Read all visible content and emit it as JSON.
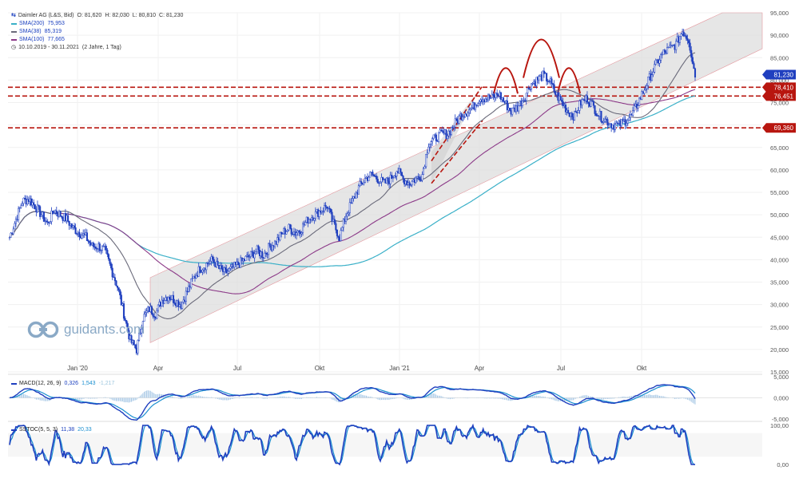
{
  "legend": {
    "title": "Daimler AG (L&S, Bid)",
    "ohlc": [
      {
        "label": "O:",
        "value": "81,620"
      },
      {
        "label": "H:",
        "value": "82,030"
      },
      {
        "label": "L:",
        "value": "80,810"
      },
      {
        "label": "C:",
        "value": "81,230"
      }
    ],
    "sma": [
      {
        "label": "SMA(200)",
        "value": "75,953",
        "color": "#3ab0c8"
      },
      {
        "label": "SMA(38)",
        "value": "85,319",
        "color": "#6a6a7a"
      },
      {
        "label": "SMA(100)",
        "value": "77,665",
        "color": "#8c3a88"
      }
    ],
    "period": "10.10.2019 - 30.11.2021",
    "period_note": "(2 Jahre, 1 Tag)"
  },
  "watermark": "guidants.com",
  "colors": {
    "candle": "#1f3fbf",
    "resistance": "#b8160f",
    "channel_fill": "#dedede",
    "price_tag": "#1f3fbf"
  },
  "chart_data": [
    {
      "type": "candlestick",
      "title": "Daimler AG (L&S, Bid)",
      "x_ticks": [
        "Jan '20",
        "Apr",
        "Jul",
        "Okt",
        "Jan '21",
        "Apr",
        "Jul",
        "Okt"
      ],
      "y_ticks": [
        "95,000",
        "90,000",
        "85,000",
        "80,000",
        "75,000",
        "70,000",
        "65,000",
        "60,000",
        "55,000",
        "50,000",
        "45,000",
        "40,000",
        "35,000",
        "30,000",
        "25,000",
        "20,000",
        "15,000"
      ],
      "ylim": [
        15,
        95
      ],
      "last_price": "81,230",
      "levels": [
        {
          "label": "78,410",
          "value": 78.41
        },
        {
          "label": "76,451",
          "value": 76.451
        },
        {
          "label": "69,360",
          "value": 69.36
        }
      ],
      "close_approx": [
        [
          0,
          45
        ],
        [
          5,
          49
        ],
        [
          10,
          53
        ],
        [
          15,
          53.5
        ],
        [
          20,
          52
        ],
        [
          25,
          50
        ],
        [
          30,
          48
        ],
        [
          35,
          51
        ],
        [
          40,
          50
        ],
        [
          45,
          49
        ],
        [
          50,
          47
        ],
        [
          55,
          46
        ],
        [
          60,
          45
        ],
        [
          65,
          43
        ],
        [
          70,
          43
        ],
        [
          75,
          42
        ],
        [
          80,
          38
        ],
        [
          85,
          34
        ],
        [
          90,
          28
        ],
        [
          95,
          22
        ],
        [
          100,
          20
        ],
        [
          105,
          27
        ],
        [
          110,
          29
        ],
        [
          115,
          28
        ],
        [
          120,
          31
        ],
        [
          125,
          32
        ],
        [
          130,
          31
        ],
        [
          135,
          30
        ],
        [
          140,
          33
        ],
        [
          145,
          36
        ],
        [
          150,
          38
        ],
        [
          155,
          39
        ],
        [
          160,
          40
        ],
        [
          165,
          38
        ],
        [
          170,
          37
        ],
        [
          175,
          38
        ],
        [
          180,
          39
        ],
        [
          185,
          40
        ],
        [
          190,
          41
        ],
        [
          195,
          42
        ],
        [
          200,
          41
        ],
        [
          205,
          43
        ],
        [
          210,
          44
        ],
        [
          215,
          46
        ],
        [
          220,
          47
        ],
        [
          225,
          46
        ],
        [
          230,
          47
        ],
        [
          235,
          49
        ],
        [
          240,
          50
        ],
        [
          245,
          51
        ],
        [
          250,
          52
        ],
        [
          255,
          48
        ],
        [
          260,
          45
        ],
        [
          265,
          50
        ],
        [
          270,
          53
        ],
        [
          275,
          56
        ],
        [
          280,
          58
        ],
        [
          285,
          59
        ],
        [
          290,
          58
        ],
        [
          295,
          57
        ],
        [
          300,
          58
        ],
        [
          305,
          60
        ],
        [
          310,
          58
        ],
        [
          315,
          57
        ],
        [
          320,
          58
        ],
        [
          325,
          59
        ],
        [
          330,
          66
        ],
        [
          335,
          67
        ],
        [
          340,
          68
        ],
        [
          345,
          68
        ],
        [
          350,
          70
        ],
        [
          355,
          72
        ],
        [
          360,
          73
        ],
        [
          365,
          74
        ],
        [
          370,
          76
        ],
        [
          375,
          76
        ],
        [
          380,
          76
        ],
        [
          385,
          77
        ],
        [
          390,
          75
        ],
        [
          395,
          73
        ],
        [
          400,
          74
        ],
        [
          405,
          76
        ],
        [
          410,
          79
        ],
        [
          415,
          80
        ],
        [
          420,
          81
        ],
        [
          425,
          80
        ],
        [
          430,
          77
        ],
        [
          435,
          75
        ],
        [
          440,
          73
        ],
        [
          445,
          72
        ],
        [
          450,
          75
        ],
        [
          455,
          76
        ],
        [
          460,
          74
        ],
        [
          465,
          72
        ],
        [
          470,
          71
        ],
        [
          475,
          70
        ],
        [
          480,
          70
        ],
        [
          485,
          71
        ],
        [
          490,
          72
        ],
        [
          495,
          75
        ],
        [
          500,
          78
        ],
        [
          505,
          81
        ],
        [
          510,
          84
        ],
        [
          515,
          86
        ],
        [
          520,
          87
        ],
        [
          525,
          88
        ],
        [
          530,
          91
        ],
        [
          535,
          89
        ],
        [
          540,
          81
        ]
      ],
      "series": [
        {
          "name": "SMA(200)",
          "value_last": "75,953"
        },
        {
          "name": "SMA(38)",
          "value_last": "85,319"
        },
        {
          "name": "SMA(100)",
          "value_last": "77,665"
        }
      ]
    },
    {
      "type": "line",
      "title": "MACD(12, 26, 9)",
      "values_shown": [
        "0,326",
        "1,543",
        "-1,217"
      ],
      "y_ticks": [
        "5,000",
        "0,000",
        "-5,000"
      ],
      "ylim": [
        -5,
        5
      ]
    },
    {
      "type": "line",
      "title": "SSTOC(5, 5, 3)",
      "values_shown": [
        "11,38",
        "20,33"
      ],
      "y_ticks": [
        "100,00",
        "0,00"
      ],
      "ylim": [
        0,
        100
      ]
    }
  ]
}
